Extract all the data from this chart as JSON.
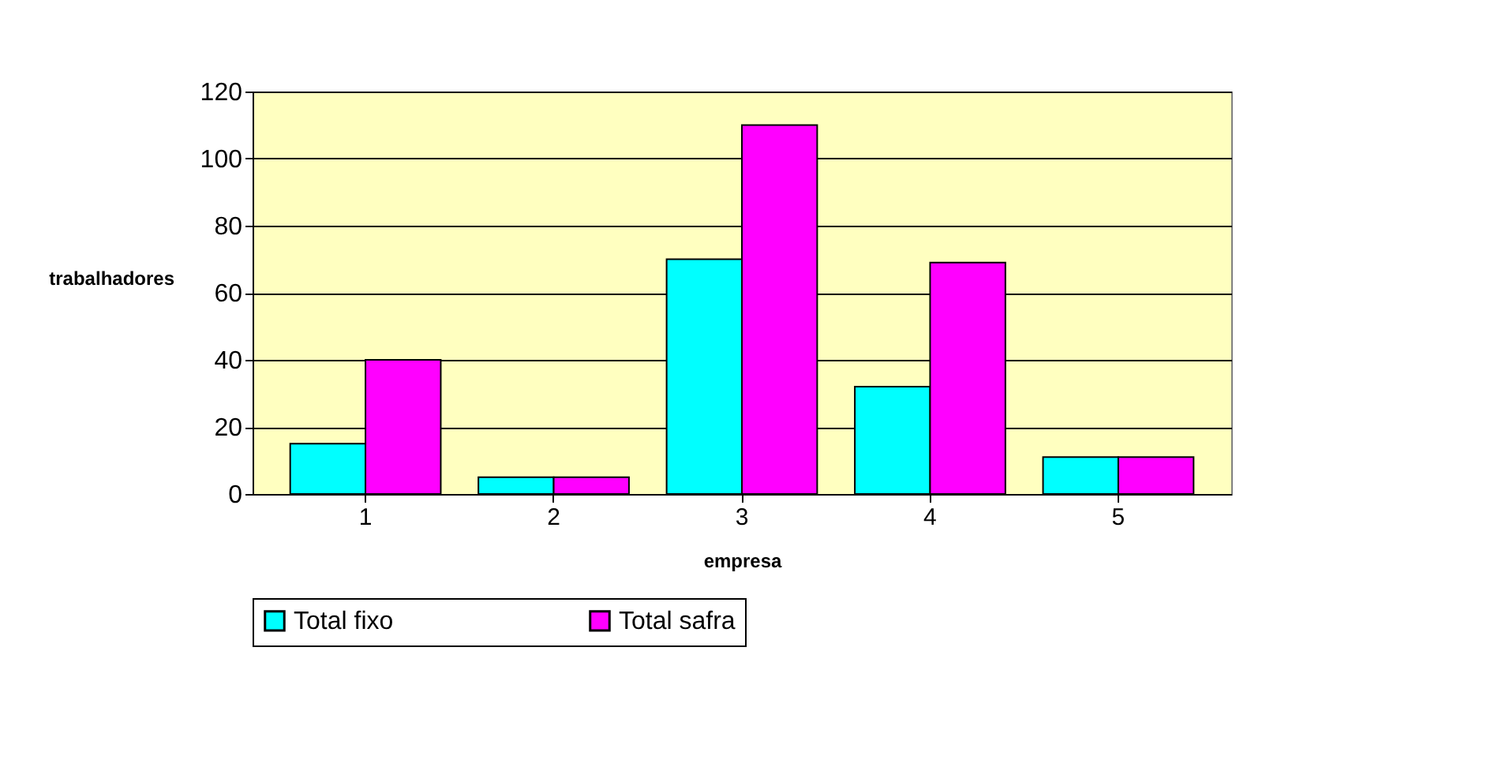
{
  "chart_data": {
    "type": "bar",
    "xlabel": "empresa",
    "ylabel": "trabalhadores",
    "categories": [
      "1",
      "2",
      "3",
      "4",
      "5"
    ],
    "series": [
      {
        "name": "Total fixo",
        "color": "#00ffff",
        "values": [
          15,
          5,
          70,
          32,
          11
        ]
      },
      {
        "name": "Total safra",
        "color": "#ff00ff",
        "values": [
          40,
          5,
          110,
          69,
          11
        ]
      }
    ],
    "ylim": [
      0,
      120
    ],
    "yticks": [
      0,
      20,
      40,
      60,
      80,
      100,
      120
    ],
    "grid": "y",
    "legend": "bottom"
  }
}
